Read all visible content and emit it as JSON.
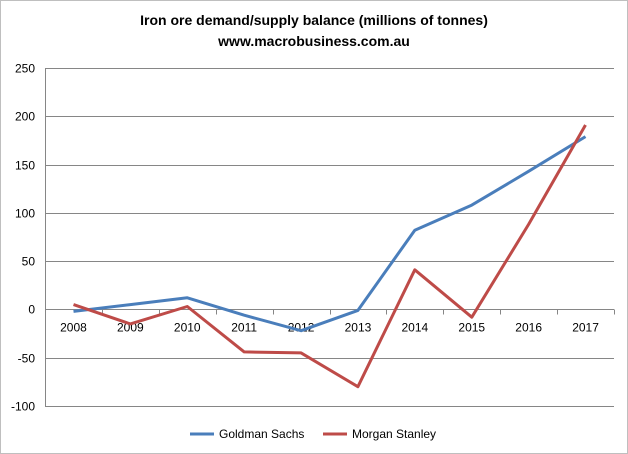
{
  "chart_data": {
    "type": "line",
    "title": "Iron ore demand/supply balance (millions of tonnes)",
    "subtitle": "www.macrobusiness.com.au",
    "xlabel": "",
    "ylabel": "",
    "categories": [
      "2008",
      "2009",
      "2010",
      "2011",
      "2012",
      "2013",
      "2014",
      "2015",
      "2016",
      "2017"
    ],
    "ylim": [
      -100,
      250
    ],
    "yticks": [
      -100,
      -50,
      0,
      50,
      100,
      150,
      200,
      250
    ],
    "grid": true,
    "legend": "bottom",
    "series": [
      {
        "name": "Goldman Sachs",
        "color": "#4a7ebb",
        "values": [
          -2,
          5,
          12,
          -6,
          -22,
          -1,
          82,
          108,
          143,
          179
        ]
      },
      {
        "name": "Morgan Stanley",
        "color": "#be4b48",
        "values": [
          5,
          -15,
          3,
          -44,
          -45,
          -80,
          41,
          -8,
          88,
          191
        ]
      }
    ]
  }
}
